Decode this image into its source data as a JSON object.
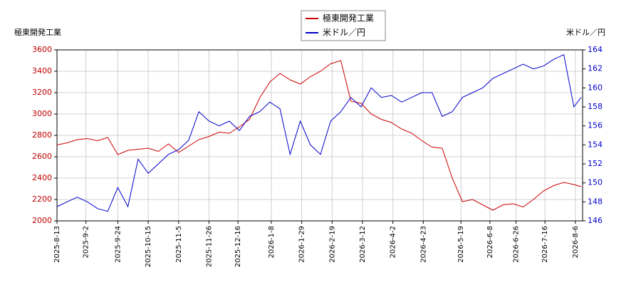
{
  "chart_data": {
    "type": "line",
    "y_label": "極東開発工業",
    "y2_label": "米ドル／円",
    "x": [
      "2025-8-13",
      "2025-8-20",
      "2025-8-27",
      "2025-9-3",
      "2025-9-10",
      "2025-9-17",
      "2025-9-24",
      "2025-10-1",
      "2025-10-8",
      "2025-10-15",
      "2025-10-22",
      "2025-10-29",
      "2025-11-5",
      "2025-11-12",
      "2025-11-19",
      "2025-11-26",
      "2025-12-3",
      "2025-12-10",
      "2025-12-17",
      "2025-12-24",
      "2025-12-31",
      "2026-1-7",
      "2026-1-14",
      "2026-1-21",
      "2026-1-28",
      "2026-2-4",
      "2026-2-11",
      "2026-2-18",
      "2026-2-25",
      "2026-3-4",
      "2026-3-11",
      "2026-3-18",
      "2026-3-25",
      "2026-4-1",
      "2026-4-8",
      "2026-4-15",
      "2026-4-22",
      "2026-4-29",
      "2026-5-6",
      "2026-5-13",
      "2026-5-20",
      "2026-5-27",
      "2026-6-3",
      "2026-6-10",
      "2026-6-17",
      "2026-6-24",
      "2026-7-1",
      "2026-7-8",
      "2026-7-15",
      "2026-7-22",
      "2026-7-29",
      "2026-8-5",
      "2026-8-10"
    ],
    "series": [
      {
        "name": "極東開発工業",
        "color": "#cc0000",
        "values": [
          2710,
          2730,
          2760,
          2770,
          2750,
          2780,
          2620,
          2660,
          2670,
          2680,
          2650,
          2720,
          2640,
          2700,
          2760,
          2790,
          2830,
          2820,
          2880,
          2950,
          3150,
          3300,
          3380,
          3320,
          3280,
          3350,
          3400,
          3470,
          3500,
          3120,
          3100,
          3000,
          2950,
          2920,
          2860,
          2820,
          2750,
          2690,
          2680,
          2400,
          2180,
          2200,
          2150,
          2100,
          2150,
          2160,
          2130,
          2200,
          2280,
          2330,
          2360,
          2340,
          2320
        ]
      },
      {
        "name": "米ドル／円",
        "color": "#0000cc",
        "axis": "y2",
        "values": [
          147.5,
          148,
          148.5,
          148,
          147.3,
          147,
          149.5,
          147.5,
          152.5,
          151,
          152,
          153,
          153.5,
          154.5,
          157.5,
          156.5,
          156,
          156.5,
          155.5,
          157,
          157.5,
          158.5,
          157.8,
          153,
          156.5,
          154,
          153,
          156.5,
          157.5,
          159,
          158,
          160,
          159,
          159.2,
          158.5,
          159,
          159.5,
          159.5,
          157,
          157.5,
          159,
          159.5,
          160,
          161,
          161.5,
          162,
          162.5,
          162,
          162.3,
          163,
          163.5,
          158,
          159
        ]
      }
    ],
    "xlim": [
      "2025-8-13",
      "2026-8-11"
    ],
    "xticks": [
      "2025-8-13",
      "2025-9-2",
      "2025-9-24",
      "2025-10-15",
      "2025-11-5",
      "2025-11-26",
      "2025-12-16",
      "2026-1-8",
      "2026-1-29",
      "2026-2-19",
      "2026-3-12",
      "2026-4-2",
      "2026-4-23",
      "2026-5-19",
      "2026-6-8",
      "2026-6-26",
      "2026-7-16",
      "2026-8-6"
    ],
    "ylim": [
      2000,
      3600
    ],
    "yticks": [
      2000,
      2200,
      2400,
      2600,
      2800,
      3000,
      3200,
      3400,
      3600
    ],
    "y2lim": [
      146,
      164
    ],
    "y2ticks": [
      146,
      148,
      150,
      152,
      154,
      156,
      158,
      160,
      162,
      164
    ],
    "grid": true,
    "legend": "top"
  }
}
